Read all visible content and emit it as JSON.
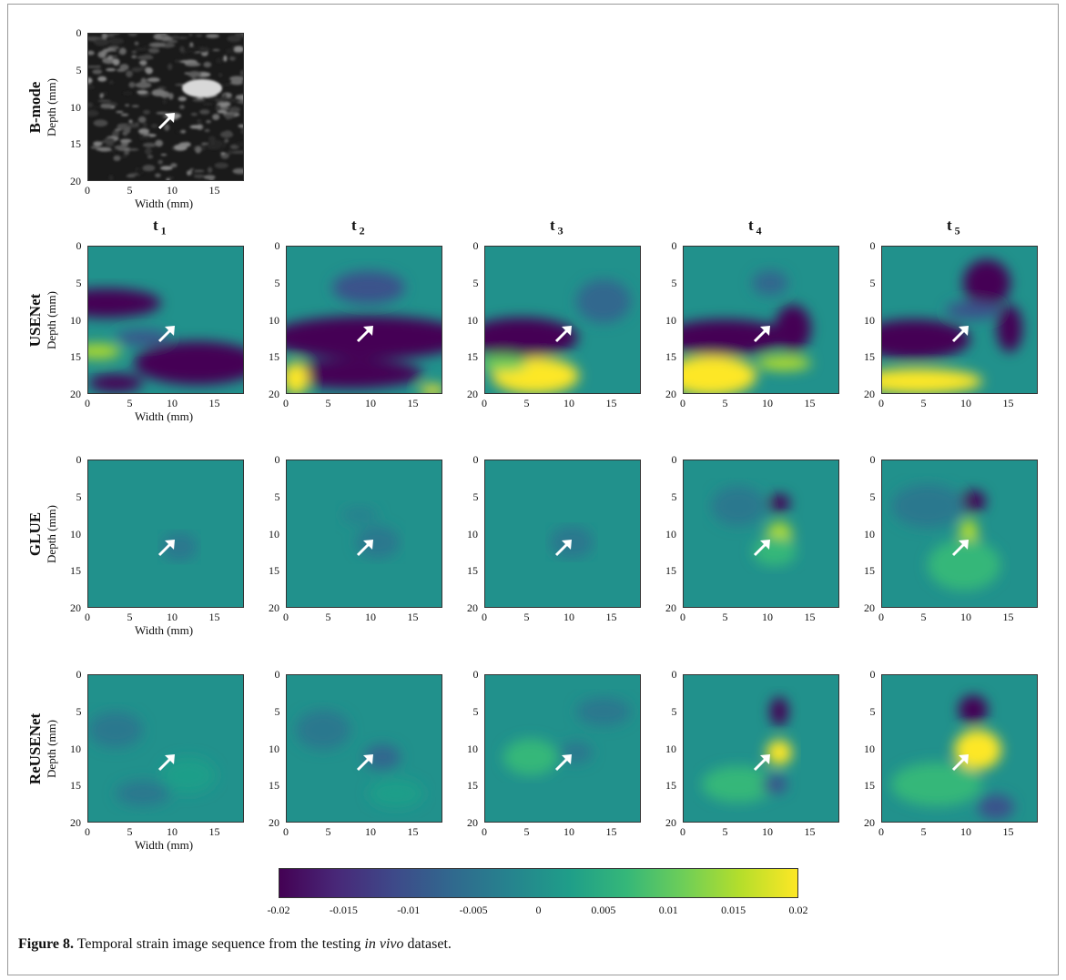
{
  "figure": {
    "caption_label": "Figure 8.",
    "caption_text_before": " Temporal strain image sequence from the testing ",
    "caption_italic": "in vivo",
    "caption_text_after": " dataset."
  },
  "columns": [
    "t",
    "t",
    "t",
    "t",
    "t"
  ],
  "column_subscripts": [
    "1",
    "2",
    "3",
    "4",
    "5"
  ],
  "rows": [
    {
      "label": "B-mode",
      "ylabel": "Depth (mm)",
      "xlabel": "Width (mm)"
    },
    {
      "label": "USENet",
      "ylabel": "Depth (mm)",
      "xlabel": "Width (mm)"
    },
    {
      "label": "GLUE",
      "ylabel": "Depth (mm)",
      "xlabel": "Width (mm)"
    },
    {
      "label": "ReUSENet",
      "ylabel": "Depth (mm)",
      "xlabel": "Width (mm)"
    }
  ],
  "axes": {
    "depth_ticks": [
      "0",
      "5",
      "10",
      "15",
      "20"
    ],
    "width_ticks": [
      "0",
      "5",
      "10",
      "15"
    ]
  },
  "colorbar": {
    "ticks": [
      "-0.02",
      "-0.015",
      "-0.01",
      "-0.005",
      "0",
      "0.005",
      "0.01",
      "0.015",
      "0.02"
    ],
    "colormap": "viridis",
    "colors": [
      "#440154",
      "#482878",
      "#3e4989",
      "#31688e",
      "#26828e",
      "#1f9e89",
      "#35b779",
      "#6ece58",
      "#b5de2b",
      "#fde725"
    ]
  },
  "icons": {
    "lesion_marker": "arrow-icon"
  }
}
